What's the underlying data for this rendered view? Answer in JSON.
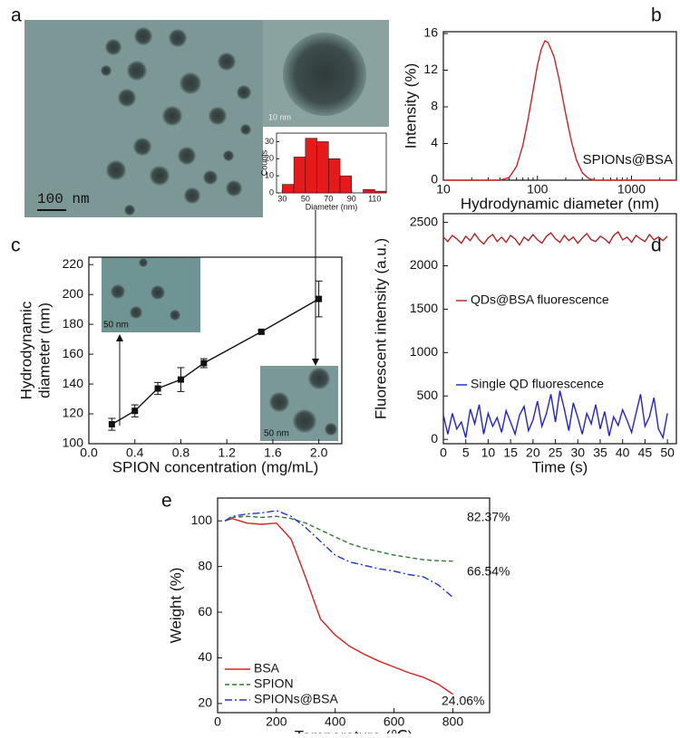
{
  "chart_data": [
    {
      "type": "histogram",
      "panel_label": "a",
      "scale_bar_label": "100 nm",
      "inset_scale_label": "10 nm",
      "xlabel": "Diameter (nm)",
      "ylabel": "Counts",
      "bins": [
        30,
        40,
        50,
        60,
        70,
        80,
        90,
        100,
        110,
        120
      ],
      "values": [
        5,
        21,
        32,
        30,
        20,
        10,
        0,
        2,
        1
      ],
      "color": "#e8191b",
      "xlim": [
        25,
        120
      ],
      "ylim": [
        0,
        35
      ],
      "xticks": [
        30,
        50,
        70,
        90,
        110
      ],
      "yticks": [
        0,
        10,
        20,
        30
      ]
    },
    {
      "type": "line",
      "panel_label": "b",
      "xlabel": "Hydrodynamic diameter (nm)",
      "ylabel": "Intensity (%)",
      "xscale": "log",
      "annotation": "SPIONs@BSA",
      "x": [
        10,
        40,
        50,
        60,
        70,
        80,
        90,
        100,
        110,
        120,
        130,
        150,
        170,
        200,
        230,
        260,
        300,
        350,
        400,
        500,
        1000,
        3000
      ],
      "series": [
        {
          "color": "#cc2222",
          "style": "solid",
          "values": [
            0,
            0,
            0.3,
            1.5,
            3.8,
            6.8,
            9.8,
            12.5,
            14.3,
            15.2,
            15.0,
            13.5,
            11.0,
            7.2,
            4.2,
            2.2,
            0.8,
            0.2,
            0,
            0,
            0,
            0
          ]
        }
      ],
      "xlim": [
        10,
        3000
      ],
      "ylim": [
        0,
        16.2
      ],
      "xticks": [
        10,
        100,
        1000
      ],
      "yticks": [
        0,
        4,
        8,
        12,
        16
      ]
    },
    {
      "type": "errorbar",
      "panel_label": "c",
      "xlabel": "SPION concentration (mg/mL)",
      "ylabel": [
        "Hydrodynamic",
        "diameter (nm)"
      ],
      "inset_scale_labels": [
        "50 nm",
        "50 nm"
      ],
      "x": [
        0.2,
        0.4,
        0.6,
        0.8,
        1.0,
        1.5,
        2.0
      ],
      "values": [
        113,
        122,
        137,
        143,
        154,
        175,
        197
      ],
      "errors": [
        4,
        4,
        4,
        8,
        3,
        1,
        12
      ],
      "color": "#111111",
      "xlim": [
        0,
        2.2
      ],
      "ylim": [
        100,
        225
      ],
      "xticks": [
        {
          "value": 0,
          "label": "0.0"
        },
        0.4,
        0.8,
        1.2,
        1.6,
        {
          "value": 2,
          "label": "2.0"
        }
      ],
      "yticks": [
        100,
        120,
        140,
        160,
        180,
        200,
        220
      ]
    },
    {
      "type": "line",
      "panel_label": "d",
      "xlabel": "Time (s)",
      "ylabel": "Fluorescent intensity (a.u.)",
      "x": [
        0,
        1,
        2,
        3,
        4,
        5,
        6,
        7,
        8,
        9,
        10,
        11,
        12,
        13,
        14,
        15,
        16,
        17,
        18,
        19,
        20,
        21,
        22,
        23,
        24,
        25,
        26,
        27,
        28,
        29,
        30,
        31,
        32,
        33,
        34,
        35,
        36,
        37,
        38,
        39,
        40,
        41,
        42,
        43,
        44,
        45,
        46,
        47,
        48,
        49,
        50
      ],
      "series": [
        {
          "name": "QDs@BSA fluorescence",
          "color": "#b22222",
          "style": "solid",
          "values": [
            2330,
            2280,
            2350,
            2310,
            2260,
            2340,
            2290,
            2370,
            2300,
            2250,
            2320,
            2360,
            2280,
            2330,
            2270,
            2350,
            2310,
            2240,
            2330,
            2290,
            2360,
            2300,
            2260,
            2340,
            2380,
            2310,
            2270,
            2350,
            2290,
            2330,
            2260,
            2320,
            2370,
            2300,
            2280,
            2340,
            2310,
            2260,
            2350,
            2390,
            2300,
            2330,
            2270,
            2350,
            2310,
            2280,
            2360,
            2300,
            2330,
            2290,
            2340
          ]
        },
        {
          "name": "Single QD fluorescence",
          "color": "#2020dd",
          "style": "solid",
          "values": [
            280,
            60,
            300,
            120,
            200,
            20,
            350,
            180,
            400,
            60,
            300,
            150,
            250,
            80,
            330,
            200,
            60,
            280,
            380,
            100,
            220,
            440,
            150,
            300,
            520,
            200,
            560,
            350,
            100,
            420,
            250,
            60,
            300,
            180,
            400,
            120,
            320,
            40,
            260,
            160,
            340,
            220,
            80,
            300,
            520,
            150,
            260,
            480,
            120,
            20,
            300
          ]
        }
      ],
      "xlim": [
        0,
        52
      ],
      "ylim": [
        -50,
        2600
      ],
      "xticks": [
        0,
        5,
        10,
        15,
        20,
        25,
        30,
        35,
        40,
        45,
        50
      ],
      "yticks": [
        0,
        500,
        1000,
        1500,
        2000,
        2500
      ]
    },
    {
      "type": "line",
      "panel_label": "e",
      "xlabel": "Temperature (℃)",
      "ylabel": "Weight (%)",
      "annotations": [
        "82.37%",
        "66.54%",
        "24.06%"
      ],
      "legend": "lower left",
      "x": [
        25,
        50,
        100,
        150,
        200,
        250,
        300,
        350,
        400,
        450,
        500,
        550,
        600,
        650,
        700,
        750,
        800
      ],
      "series": [
        {
          "name": "BSA",
          "color": "#d62020",
          "style": "solid",
          "values": [
            100,
            101,
            99,
            98.5,
            99,
            92,
            75,
            57,
            50,
            45,
            41.5,
            38.5,
            36,
            33.5,
            31.5,
            28.5,
            24.06
          ]
        },
        {
          "name": "SPION",
          "color": "#2e7d32",
          "style": "dashed",
          "values": [
            100,
            101.5,
            102,
            101.5,
            102,
            101,
            99,
            96,
            93,
            90,
            88,
            86.5,
            85,
            84,
            83,
            82.5,
            82.37
          ]
        },
        {
          "name": "SPIONs@BSA",
          "color": "#2233cc",
          "style": "dashdot",
          "values": [
            100,
            102,
            103,
            103.5,
            104.5,
            102,
            97,
            91,
            85,
            82,
            80.5,
            79,
            78,
            76.5,
            75.5,
            72,
            66.54
          ]
        }
      ],
      "xlim": [
        0,
        925
      ],
      "ylim": [
        16,
        110
      ],
      "xticks": [
        0,
        200,
        400,
        600,
        800
      ],
      "yticks": [
        20,
        40,
        60,
        80,
        100
      ]
    }
  ]
}
